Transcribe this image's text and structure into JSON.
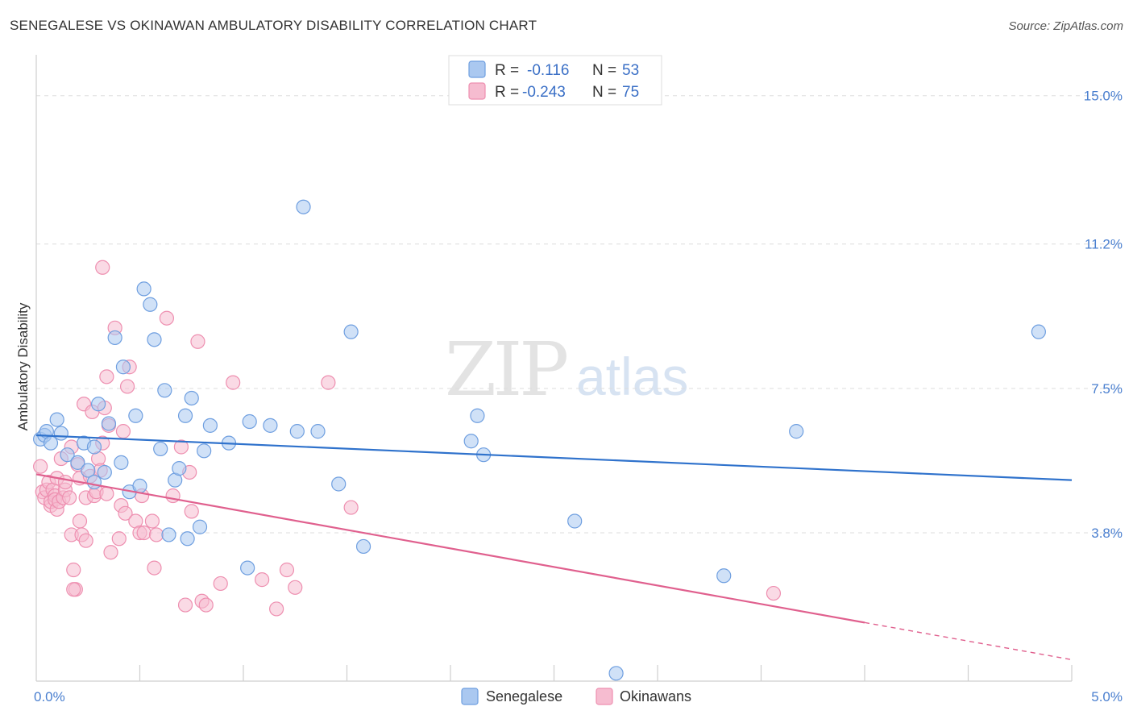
{
  "header": {
    "title": "SENEGALESE VS OKINAWAN AMBULATORY DISABILITY CORRELATION CHART",
    "source": "Source: ZipAtlas.com"
  },
  "watermark": {
    "zip": "ZIP",
    "atlas": "atlas"
  },
  "legend": {
    "row1": {
      "r_label": "R =",
      "r_value": "-0.116",
      "n_label": "N =",
      "n_value": "53"
    },
    "row2": {
      "r_label": "R =",
      "r_value": "-0.243",
      "n_label": "N =",
      "n_value": "75"
    }
  },
  "bottom_legend": {
    "s1": "Senegalese",
    "s2": "Okinawans"
  },
  "colors": {
    "blue_fill": "#aac8f0",
    "blue_stroke": "#6f9fe0",
    "blue_line": "#2f72cc",
    "pink_fill": "#f6bcd0",
    "pink_stroke": "#ee8fb0",
    "pink_line": "#e0608e",
    "grid": "#dddddd",
    "tick_text": "#4a7fcf"
  },
  "chart_data": {
    "type": "scatter",
    "title": "SENEGALESE VS OKINAWAN AMBULATORY DISABILITY CORRELATION CHART",
    "xlabel": "",
    "ylabel": "Ambulatory Disability",
    "xlim": [
      0.0,
      5.0
    ],
    "ylim": [
      0.0,
      15.8
    ],
    "y_ticks": [
      3.8,
      7.5,
      11.2,
      15.0
    ],
    "y_tick_labels": [
      "3.8%",
      "7.5%",
      "11.2%",
      "15.0%"
    ],
    "x_tick_labels": [
      "0.0%",
      "5.0%"
    ],
    "grid": true,
    "legend_position": "top-center",
    "series": [
      {
        "name": "Senegalese",
        "r": -0.116,
        "n": 53,
        "trend": {
          "x": [
            0.0,
            5.0
          ],
          "y": [
            6.3,
            5.15
          ]
        },
        "points": [
          [
            0.02,
            6.2
          ],
          [
            0.04,
            6.3
          ],
          [
            0.05,
            6.4
          ],
          [
            0.07,
            6.1
          ],
          [
            0.1,
            6.7
          ],
          [
            0.12,
            6.35
          ],
          [
            0.15,
            5.8
          ],
          [
            0.2,
            5.6
          ],
          [
            0.23,
            6.1
          ],
          [
            0.25,
            5.4
          ],
          [
            0.28,
            6.0
          ],
          [
            0.28,
            5.1
          ],
          [
            0.3,
            7.1
          ],
          [
            0.33,
            5.35
          ],
          [
            0.35,
            6.6
          ],
          [
            0.38,
            8.8
          ],
          [
            0.41,
            5.6
          ],
          [
            0.42,
            8.05
          ],
          [
            0.45,
            4.85
          ],
          [
            0.48,
            6.8
          ],
          [
            0.5,
            5.0
          ],
          [
            0.52,
            10.05
          ],
          [
            0.55,
            9.65
          ],
          [
            0.57,
            8.75
          ],
          [
            0.6,
            5.95
          ],
          [
            0.62,
            7.45
          ],
          [
            0.64,
            3.75
          ],
          [
            0.67,
            5.15
          ],
          [
            0.69,
            5.45
          ],
          [
            0.72,
            6.8
          ],
          [
            0.73,
            3.65
          ],
          [
            0.75,
            7.25
          ],
          [
            0.79,
            3.95
          ],
          [
            0.81,
            5.9
          ],
          [
            0.84,
            6.55
          ],
          [
            0.93,
            6.1
          ],
          [
            1.02,
            2.9
          ],
          [
            1.03,
            6.65
          ],
          [
            1.13,
            6.55
          ],
          [
            1.26,
            6.4
          ],
          [
            1.29,
            12.15
          ],
          [
            1.36,
            6.4
          ],
          [
            1.46,
            5.05
          ],
          [
            1.52,
            8.95
          ],
          [
            1.58,
            3.45
          ],
          [
            2.1,
            6.15
          ],
          [
            2.13,
            6.8
          ],
          [
            2.16,
            5.8
          ],
          [
            2.6,
            4.1
          ],
          [
            2.8,
            0.2
          ],
          [
            3.32,
            2.7
          ],
          [
            3.67,
            6.4
          ],
          [
            4.84,
            8.95
          ]
        ]
      },
      {
        "name": "Okinawans",
        "r": -0.243,
        "n": 75,
        "trend": {
          "x": [
            0.0,
            4.0
          ],
          "y": [
            5.3,
            1.5
          ]
        },
        "trend_dashed": {
          "x": [
            4.0,
            5.0
          ],
          "y": [
            1.5,
            0.55
          ]
        },
        "points": [
          [
            0.02,
            5.5
          ],
          [
            0.03,
            4.85
          ],
          [
            0.04,
            4.7
          ],
          [
            0.05,
            4.9
          ],
          [
            0.06,
            5.1
          ],
          [
            0.07,
            4.5
          ],
          [
            0.07,
            4.6
          ],
          [
            0.08,
            4.9
          ],
          [
            0.09,
            4.75
          ],
          [
            0.09,
            4.65
          ],
          [
            0.1,
            4.4
          ],
          [
            0.1,
            5.2
          ],
          [
            0.11,
            4.6
          ],
          [
            0.12,
            5.7
          ],
          [
            0.13,
            4.7
          ],
          [
            0.14,
            4.9
          ],
          [
            0.14,
            5.1
          ],
          [
            0.16,
            4.7
          ],
          [
            0.17,
            6.0
          ],
          [
            0.17,
            3.75
          ],
          [
            0.18,
            2.85
          ],
          [
            0.19,
            2.35
          ],
          [
            0.2,
            5.55
          ],
          [
            0.21,
            4.1
          ],
          [
            0.21,
            5.2
          ],
          [
            0.22,
            3.75
          ],
          [
            0.23,
            7.1
          ],
          [
            0.24,
            3.6
          ],
          [
            0.24,
            4.7
          ],
          [
            0.26,
            5.25
          ],
          [
            0.27,
            6.9
          ],
          [
            0.28,
            4.75
          ],
          [
            0.29,
            4.85
          ],
          [
            0.3,
            5.7
          ],
          [
            0.31,
            5.4
          ],
          [
            0.32,
            6.1
          ],
          [
            0.33,
            7.0
          ],
          [
            0.34,
            4.8
          ],
          [
            0.34,
            7.8
          ],
          [
            0.35,
            6.55
          ],
          [
            0.36,
            3.3
          ],
          [
            0.38,
            9.05
          ],
          [
            0.4,
            3.65
          ],
          [
            0.41,
            4.5
          ],
          [
            0.42,
            6.4
          ],
          [
            0.43,
            4.3
          ],
          [
            0.44,
            7.55
          ],
          [
            0.45,
            8.05
          ],
          [
            0.48,
            4.1
          ],
          [
            0.5,
            3.8
          ],
          [
            0.51,
            4.75
          ],
          [
            0.52,
            3.8
          ],
          [
            0.56,
            4.1
          ],
          [
            0.57,
            2.9
          ],
          [
            0.58,
            3.75
          ],
          [
            0.63,
            9.3
          ],
          [
            0.66,
            4.75
          ],
          [
            0.7,
            6.0
          ],
          [
            0.72,
            1.95
          ],
          [
            0.74,
            5.35
          ],
          [
            0.75,
            4.35
          ],
          [
            0.78,
            8.7
          ],
          [
            0.8,
            2.05
          ],
          [
            0.82,
            1.95
          ],
          [
            0.89,
            2.5
          ],
          [
            0.95,
            7.65
          ],
          [
            1.09,
            2.6
          ],
          [
            1.16,
            1.85
          ],
          [
            1.21,
            2.85
          ],
          [
            1.25,
            2.4
          ],
          [
            1.41,
            7.65
          ],
          [
            1.52,
            4.45
          ],
          [
            3.56,
            2.25
          ],
          [
            0.32,
            10.6
          ],
          [
            0.18,
            2.35
          ]
        ]
      }
    ]
  }
}
